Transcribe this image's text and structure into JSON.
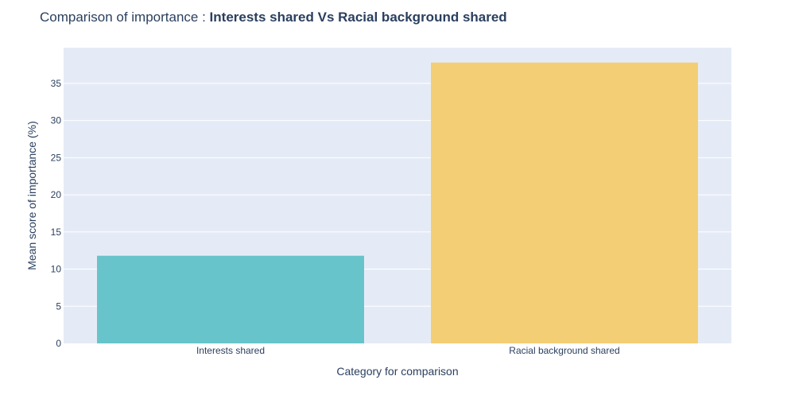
{
  "chart_data": {
    "type": "bar",
    "title_prefix": "Comparison of importance : ",
    "title_bold": "Interests shared Vs Racial background shared",
    "xlabel": "Category for comparison",
    "ylabel": "Mean score of importance (%)",
    "categories": [
      "Interests shared",
      "Racial background shared"
    ],
    "values": [
      11.8,
      37.8
    ],
    "colors": [
      "#68c4cb",
      "#f4ce74"
    ],
    "ylim": [
      0,
      39.8
    ],
    "yticks": [
      0,
      5,
      10,
      15,
      20,
      25,
      30,
      35
    ],
    "grid": true,
    "plot_bg": "#e5ebf6"
  }
}
